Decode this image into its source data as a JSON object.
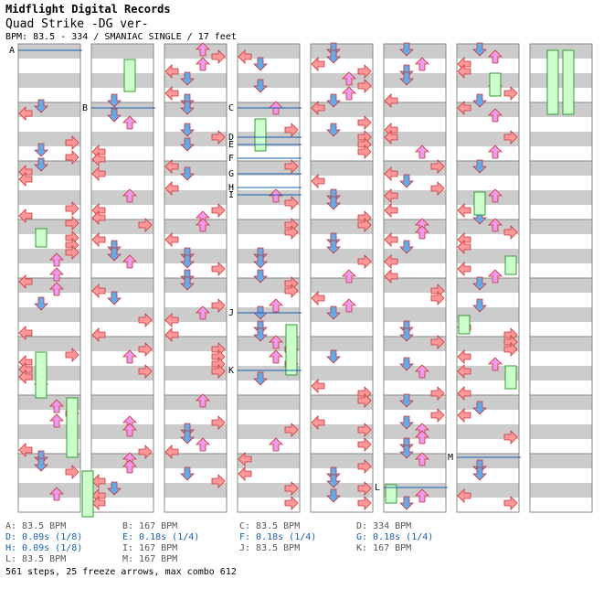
{
  "header": {
    "label": "Midflight Digital Records",
    "song": "Quad Strike -DG ver-",
    "info": "BPM: 83.5 - 334 / SMANIAC SINGLE / 17 feet"
  },
  "colors": {
    "left": "#ff9999",
    "down": "#66aaee",
    "up": "#ee99ee",
    "right": "#ff9999",
    "freeze": "#ccffcc",
    "marker": "#1560b0",
    "bpm_line": "#666666"
  },
  "markers": [
    "A",
    "B",
    "C",
    "D",
    "E",
    "F",
    "G",
    "H",
    "I",
    "J",
    "K",
    "L",
    "M"
  ],
  "legend": [
    {
      "id": "A",
      "text": "A: 83.5 BPM",
      "type": "bpm"
    },
    {
      "id": "B",
      "text": "B: 167 BPM",
      "type": "bpm"
    },
    {
      "id": "C",
      "text": "C: 83.5 BPM",
      "type": "bpm"
    },
    {
      "id": "D",
      "text": "D: 334 BPM",
      "type": "bpm"
    },
    {
      "id": "D2",
      "text": "D: 0.09s (1/8)",
      "type": "stop"
    },
    {
      "id": "E",
      "text": "E: 0.18s (1/4)",
      "type": "stop"
    },
    {
      "id": "F",
      "text": "F: 0.18s (1/4)",
      "type": "stop"
    },
    {
      "id": "G",
      "text": "G: 0.18s (1/4)",
      "type": "stop"
    },
    {
      "id": "H",
      "text": "H: 0.09s (1/8)",
      "type": "stop"
    },
    {
      "id": "I",
      "text": "I: 167 BPM",
      "type": "bpm"
    },
    {
      "id": "J",
      "text": "J: 83.5 BPM",
      "type": "bpm"
    },
    {
      "id": "K",
      "text": "K: 167 BPM",
      "type": "bpm"
    },
    {
      "id": "L",
      "text": "L: 83.5 BPM",
      "type": "bpm"
    },
    {
      "id": "M",
      "text": "M: 167 BPM",
      "type": "bpm"
    }
  ],
  "summary": "561 steps, 25 freeze arrows, max combo 612"
}
